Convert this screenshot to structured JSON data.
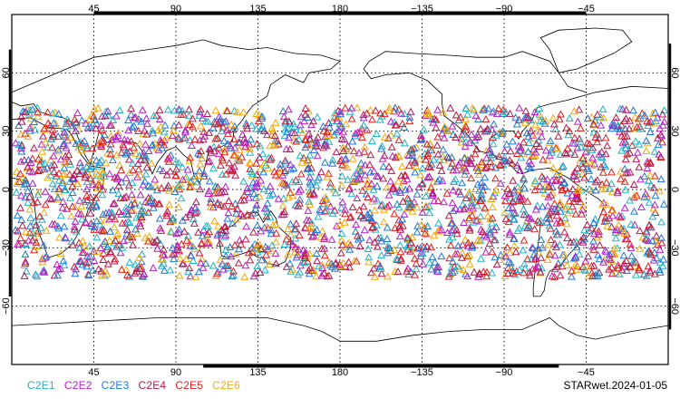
{
  "map": {
    "projection": "equirectangular",
    "longitude_range": [
      0,
      360
    ],
    "latitude_range": [
      -90,
      90
    ],
    "grid": true,
    "coastlines": true,
    "lon_tick_labels": [
      "45",
      "90",
      "135",
      "180",
      "−135",
      "−90",
      "−45"
    ],
    "lat_tick_labels": [
      "60",
      "30",
      "0",
      "−30",
      "−60"
    ],
    "marker": "open-triangle",
    "observation_band": {
      "lat_min": -45,
      "lat_max": 42
    }
  },
  "legend": {
    "series": [
      {
        "name": "C2E1",
        "color": "#1fb4c8"
      },
      {
        "name": "C2E2",
        "color": "#b41fc8"
      },
      {
        "name": "C2E3",
        "color": "#1f78d4"
      },
      {
        "name": "C2E4",
        "color": "#b4194a"
      },
      {
        "name": "C2E5",
        "color": "#e01e1e"
      },
      {
        "name": "C2E6",
        "color": "#f5a80a"
      }
    ]
  },
  "footer": {
    "label": "STARwet.2024-01-05"
  }
}
